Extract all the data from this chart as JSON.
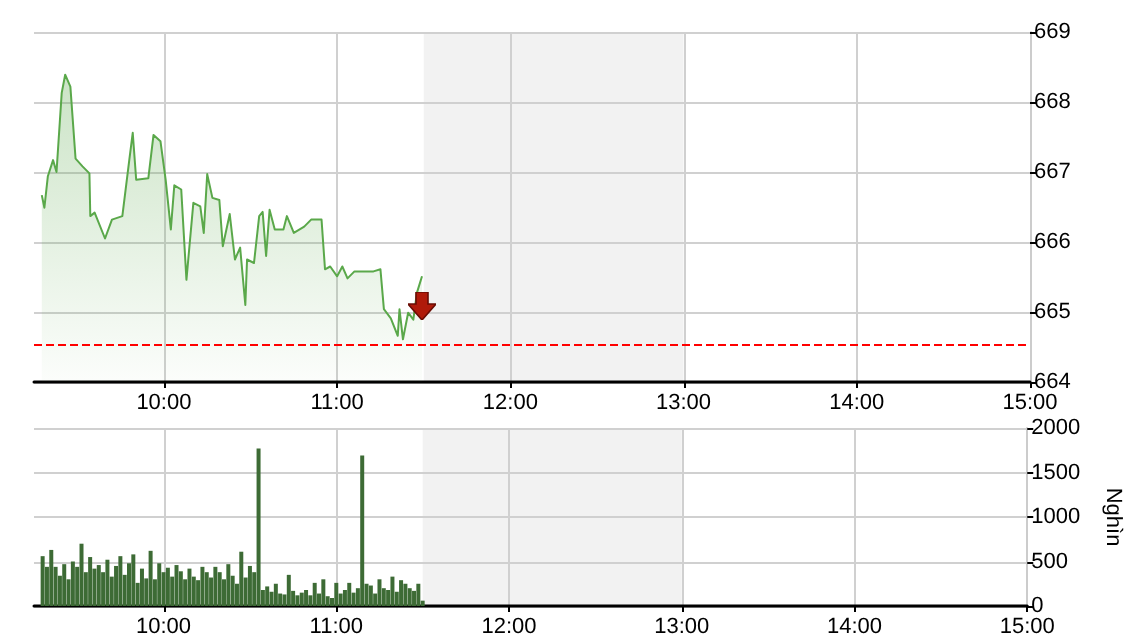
{
  "chart_data": [
    {
      "type": "area",
      "x": [
        9.295,
        9.31,
        9.33,
        9.36,
        9.38,
        9.41,
        9.43,
        9.46,
        9.49,
        9.53,
        9.57,
        9.575,
        9.6,
        9.66,
        9.7,
        9.76,
        9.8,
        9.82,
        9.84,
        9.91,
        9.94,
        9.98,
        10.01,
        10.04,
        10.06,
        10.1,
        10.13,
        10.17,
        10.21,
        10.23,
        10.25,
        10.28,
        10.32,
        10.34,
        10.38,
        10.41,
        10.44,
        10.47,
        10.48,
        10.52,
        10.55,
        10.57,
        10.59,
        10.61,
        10.64,
        10.69,
        10.71,
        10.75,
        10.81,
        10.85,
        10.91,
        10.93,
        10.96,
        11.0,
        11.03,
        11.06,
        11.1,
        11.16,
        11.21,
        11.25,
        11.27,
        11.31,
        11.35,
        11.36,
        11.38,
        11.41,
        11.44,
        11.46,
        11.49
      ],
      "series": [
        {
          "color": "#5aa84a",
          "values": [
            666.67,
            666.49,
            666.94,
            667.17,
            667.0,
            668.13,
            668.39,
            668.22,
            667.19,
            667.08,
            666.98,
            666.37,
            666.42,
            666.05,
            666.32,
            666.37,
            667.17,
            667.56,
            666.89,
            666.91,
            667.53,
            667.44,
            666.89,
            666.18,
            666.81,
            666.75,
            665.46,
            666.56,
            666.51,
            666.13,
            666.97,
            666.63,
            666.6,
            665.94,
            666.4,
            665.75,
            665.92,
            665.1,
            665.75,
            665.7,
            666.37,
            666.43,
            665.8,
            666.46,
            666.18,
            666.18,
            666.37,
            666.13,
            666.22,
            666.32,
            666.32,
            665.61,
            665.65,
            665.51,
            665.65,
            665.48,
            665.58,
            665.58,
            665.58,
            665.61,
            665.04,
            664.91,
            664.66,
            665.04,
            664.61,
            664.99,
            664.89,
            665.27,
            665.51
          ]
        }
      ],
      "xlim": [
        9.25,
        15
      ],
      "xticks": [
        {
          "value": 10,
          "label": "10:00"
        },
        {
          "value": 11,
          "label": "11:00"
        },
        {
          "value": 12,
          "label": "12:00"
        },
        {
          "value": 13,
          "label": "13:00"
        },
        {
          "value": 14,
          "label": "14:00"
        },
        {
          "value": 15,
          "label": "15:00"
        }
      ],
      "ylim": [
        664,
        669
      ],
      "yticks": [
        664,
        665,
        666,
        667,
        668,
        669
      ],
      "grid": true,
      "ref_lines": [
        {
          "axis": "y",
          "value": 664.55,
          "color": "#ff0000",
          "line_style": "dashed"
        }
      ],
      "bands": [
        {
          "axis": "x",
          "from": 11.5,
          "to": 13,
          "color": "#f2f2f2"
        }
      ]
    },
    {
      "type": "bar",
      "x": [
        9.3,
        9.325,
        9.35,
        9.375,
        9.4,
        9.425,
        9.45,
        9.475,
        9.5,
        9.525,
        9.55,
        9.575,
        9.6,
        9.625,
        9.65,
        9.675,
        9.7,
        9.725,
        9.75,
        9.775,
        9.8,
        9.825,
        9.85,
        9.875,
        9.9,
        9.925,
        9.95,
        9.975,
        10.0,
        10.025,
        10.05,
        10.075,
        10.1,
        10.125,
        10.15,
        10.175,
        10.2,
        10.225,
        10.25,
        10.275,
        10.3,
        10.325,
        10.35,
        10.375,
        10.4,
        10.425,
        10.45,
        10.475,
        10.5,
        10.525,
        10.55,
        10.575,
        10.6,
        10.625,
        10.65,
        10.675,
        10.7,
        10.725,
        10.75,
        10.775,
        10.8,
        10.825,
        10.85,
        10.875,
        10.9,
        10.925,
        10.95,
        10.975,
        11.0,
        11.025,
        11.05,
        11.075,
        11.1,
        11.125,
        11.15,
        11.175,
        11.2,
        11.225,
        11.25,
        11.275,
        11.3,
        11.325,
        11.35,
        11.375,
        11.4,
        11.425,
        11.45,
        11.475,
        11.5
      ],
      "series": [
        {
          "color": "#3d6b35",
          "values": [
            560,
            440,
            630,
            440,
            340,
            470,
            300,
            500,
            440,
            700,
            380,
            550,
            420,
            460,
            380,
            520,
            330,
            450,
            560,
            350,
            480,
            580,
            260,
            420,
            310,
            620,
            300,
            480,
            380,
            430,
            330,
            460,
            390,
            300,
            420,
            330,
            290,
            440,
            380,
            320,
            440,
            380,
            300,
            470,
            340,
            250,
            610,
            320,
            450,
            380,
            1770,
            180,
            220,
            160,
            250,
            140,
            130,
            350,
            170,
            120,
            150,
            180,
            120,
            260,
            140,
            300,
            110,
            90,
            260,
            140,
            180,
            260,
            150,
            200,
            1690,
            250,
            230,
            140,
            300,
            200,
            180,
            330,
            160,
            290,
            250,
            200,
            170,
            250,
            60
          ]
        }
      ],
      "xlim": [
        9.25,
        15
      ],
      "xticks": [
        {
          "value": 10,
          "label": "10:00"
        },
        {
          "value": 11,
          "label": "11:00"
        },
        {
          "value": 12,
          "label": "12:00"
        },
        {
          "value": 13,
          "label": "13:00"
        },
        {
          "value": 14,
          "label": "14:00"
        },
        {
          "value": 15,
          "label": "15:00"
        }
      ],
      "ylim": [
        0,
        2000
      ],
      "yticks": [
        0,
        500,
        1000,
        1500,
        2000
      ],
      "ylabel": "Nghìn",
      "grid": true,
      "bands": [
        {
          "axis": "x",
          "from": 11.5,
          "to": 13,
          "color": "#f2f2f2"
        }
      ]
    }
  ]
}
